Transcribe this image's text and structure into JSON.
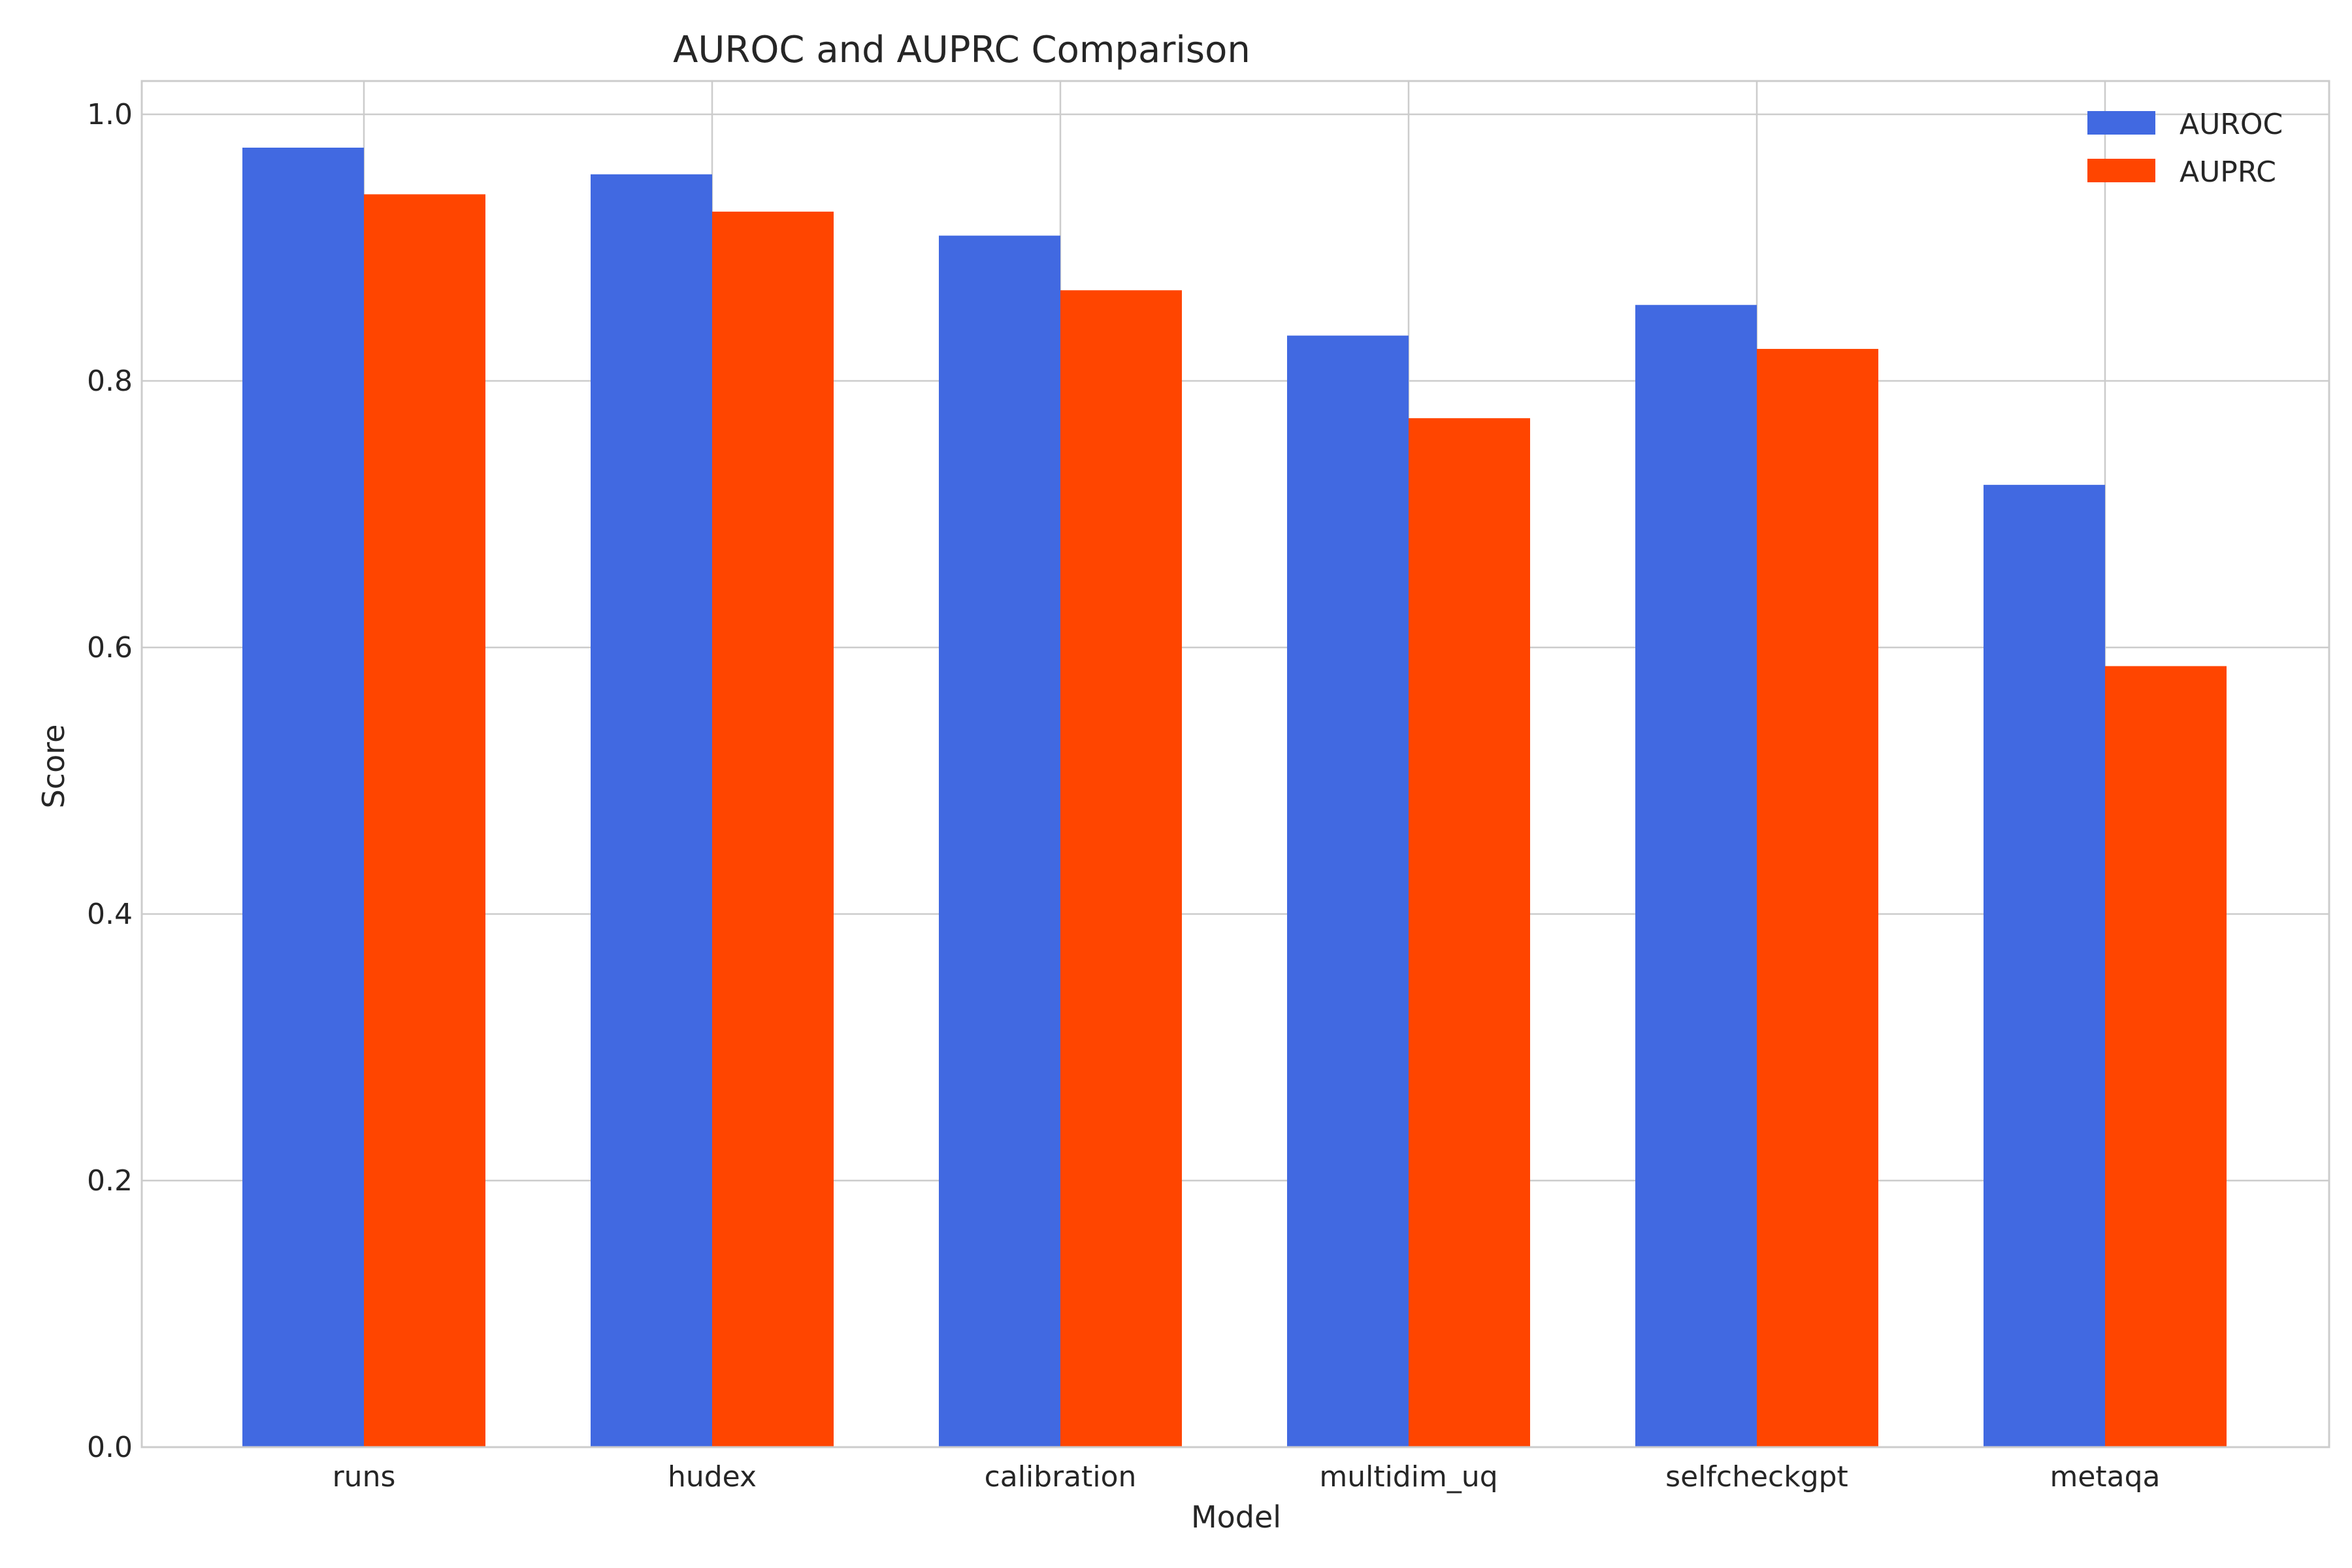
{
  "chart_data": {
    "type": "bar",
    "title": "AUROC and AUPRC Comparison",
    "xlabel": "Model",
    "ylabel": "Score",
    "categories": [
      "runs",
      "hudex",
      "calibration",
      "multidim_uq",
      "selfcheckgpt",
      "metaqa"
    ],
    "series": [
      {
        "name": "AUROC",
        "color": "#4169E1",
        "values": [
          0.975,
          0.955,
          0.909,
          0.834,
          0.857,
          0.722
        ]
      },
      {
        "name": "AUPRC",
        "color": "#FF4500",
        "values": [
          0.94,
          0.927,
          0.868,
          0.772,
          0.824,
          0.586
        ]
      }
    ],
    "ylim": [
      0,
      1.0
    ],
    "yticks": [
      "0.0",
      "0.2",
      "0.4",
      "0.6",
      "0.8",
      "1.0"
    ],
    "grid": true,
    "legend_position": "top-right"
  }
}
